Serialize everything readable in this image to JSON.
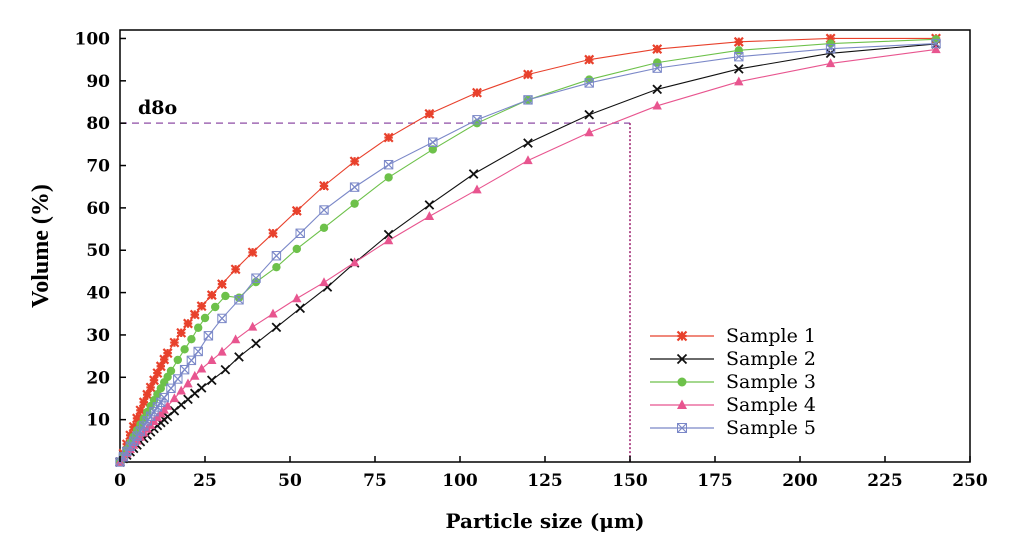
{
  "chart_data": {
    "type": "line",
    "title": "",
    "xlabel": "Particle size (μm)",
    "ylabel": "Volume (%)",
    "xlim": [
      0,
      250
    ],
    "ylim": [
      0,
      102
    ],
    "xticks": [
      0,
      25,
      50,
      75,
      100,
      125,
      150,
      175,
      200,
      225,
      250
    ],
    "yticks": [
      10,
      20,
      30,
      40,
      50,
      60,
      70,
      80,
      90,
      100
    ],
    "grid": false,
    "legend_position": "bottom-right",
    "annotation": {
      "text": "d8o",
      "reference_y": 80,
      "reference_x": 150,
      "color": "#a06ab4"
    },
    "series": [
      {
        "name": "Sample 1",
        "color": "#e8412c",
        "marker": "star",
        "points": [
          [
            0,
            0
          ],
          [
            1,
            2
          ],
          [
            2,
            4.2
          ],
          [
            3,
            6.3
          ],
          [
            4,
            8.3
          ],
          [
            5,
            10.3
          ],
          [
            6,
            12.2
          ],
          [
            7,
            14.1
          ],
          [
            8,
            15.9
          ],
          [
            9,
            17.6
          ],
          [
            10,
            19.3
          ],
          [
            11,
            21
          ],
          [
            12,
            22.6
          ],
          [
            13,
            24.2
          ],
          [
            14,
            25.7
          ],
          [
            16,
            28.2
          ],
          [
            18,
            30.5
          ],
          [
            20,
            32.7
          ],
          [
            22,
            34.8
          ],
          [
            24,
            36.8
          ],
          [
            27,
            39.4
          ],
          [
            30,
            42
          ],
          [
            34,
            45.5
          ],
          [
            39,
            49.5
          ],
          [
            45,
            54
          ],
          [
            52,
            59.3
          ],
          [
            60,
            65.2
          ],
          [
            69,
            71
          ],
          [
            79,
            76.6
          ],
          [
            91,
            82.2
          ],
          [
            105,
            87.2
          ],
          [
            120,
            91.5
          ],
          [
            138,
            95
          ],
          [
            158,
            97.5
          ],
          [
            182,
            99.2
          ],
          [
            209,
            100
          ],
          [
            240,
            100
          ]
        ]
      },
      {
        "name": "Sample 2",
        "color": "#111111",
        "marker": "x",
        "points": [
          [
            0,
            0
          ],
          [
            1,
            0.8
          ],
          [
            2,
            1.6
          ],
          [
            3,
            2.4
          ],
          [
            4,
            3.2
          ],
          [
            5,
            4
          ],
          [
            6,
            4.8
          ],
          [
            7,
            5.6
          ],
          [
            8,
            6.3
          ],
          [
            9,
            7.1
          ],
          [
            10,
            7.9
          ],
          [
            11,
            8.6
          ],
          [
            12,
            9.3
          ],
          [
            13,
            10
          ],
          [
            14,
            10.7
          ],
          [
            16,
            12.1
          ],
          [
            18,
            13.5
          ],
          [
            20,
            14.8
          ],
          [
            22,
            16.2
          ],
          [
            24,
            17.5
          ],
          [
            27,
            19.3
          ],
          [
            31,
            21.8
          ],
          [
            35,
            24.8
          ],
          [
            40,
            28
          ],
          [
            46,
            31.8
          ],
          [
            53,
            36.3
          ],
          [
            61,
            41.3
          ],
          [
            69,
            47
          ],
          [
            79,
            53.7
          ],
          [
            91,
            60.7
          ],
          [
            104,
            68
          ],
          [
            120,
            75.3
          ],
          [
            138,
            82
          ],
          [
            158,
            88
          ],
          [
            182,
            92.8
          ],
          [
            209,
            96.5
          ],
          [
            240,
            98.7
          ]
        ]
      },
      {
        "name": "Sample 3",
        "color": "#6dc14a",
        "marker": "circle",
        "points": [
          [
            0,
            0
          ],
          [
            1,
            1.5
          ],
          [
            2,
            3
          ],
          [
            3,
            4.5
          ],
          [
            4,
            6
          ],
          [
            5,
            7.5
          ],
          [
            6,
            8.9
          ],
          [
            7,
            10.3
          ],
          [
            8,
            11.8
          ],
          [
            9,
            13.2
          ],
          [
            10,
            14.6
          ],
          [
            11,
            16
          ],
          [
            12,
            17.4
          ],
          [
            13,
            18.8
          ],
          [
            14,
            20.1
          ],
          [
            15,
            21.5
          ],
          [
            17,
            24.1
          ],
          [
            19,
            26.6
          ],
          [
            21,
            29
          ],
          [
            23,
            31.7
          ],
          [
            25,
            34
          ],
          [
            28,
            36.6
          ],
          [
            31,
            39.2
          ],
          [
            35,
            38.8
          ],
          [
            40,
            42.5
          ],
          [
            46,
            46
          ],
          [
            52,
            50.3
          ],
          [
            60,
            55.3
          ],
          [
            69,
            61
          ],
          [
            79,
            67.2
          ],
          [
            92,
            73.8
          ],
          [
            105,
            80
          ],
          [
            120,
            85.5
          ],
          [
            138,
            90.3
          ],
          [
            158,
            94.3
          ],
          [
            182,
            97.2
          ],
          [
            209,
            98.8
          ],
          [
            240,
            99.8
          ]
        ]
      },
      {
        "name": "Sample 4",
        "color": "#e8558f",
        "marker": "triangle",
        "points": [
          [
            0,
            0
          ],
          [
            1,
            1
          ],
          [
            2,
            2
          ],
          [
            3,
            3
          ],
          [
            4,
            4
          ],
          [
            5,
            5
          ],
          [
            6,
            5.9
          ],
          [
            7,
            6.9
          ],
          [
            8,
            7.8
          ],
          [
            9,
            8.7
          ],
          [
            10,
            9.6
          ],
          [
            11,
            10.5
          ],
          [
            12,
            11.4
          ],
          [
            13,
            12.3
          ],
          [
            14,
            13.2
          ],
          [
            16,
            15
          ],
          [
            18,
            16.8
          ],
          [
            20,
            18.5
          ],
          [
            22,
            20.3
          ],
          [
            24,
            22
          ],
          [
            27,
            24
          ],
          [
            30,
            26
          ],
          [
            34,
            28.9
          ],
          [
            39,
            31.9
          ],
          [
            45,
            35
          ],
          [
            52,
            38.6
          ],
          [
            60,
            42.4
          ],
          [
            69,
            47.1
          ],
          [
            79,
            52.3
          ],
          [
            91,
            58
          ],
          [
            105,
            64.3
          ],
          [
            120,
            71.2
          ],
          [
            138,
            77.8
          ],
          [
            158,
            84.1
          ],
          [
            182,
            89.8
          ],
          [
            209,
            94.1
          ],
          [
            240,
            97.4
          ]
        ]
      },
      {
        "name": "Sample 5",
        "color": "#7b88c8",
        "marker": "cross-square",
        "points": [
          [
            0,
            0
          ],
          [
            1,
            1.2
          ],
          [
            2,
            2.5
          ],
          [
            3,
            3.7
          ],
          [
            4,
            4.9
          ],
          [
            5,
            6.1
          ],
          [
            6,
            7.3
          ],
          [
            7,
            8.5
          ],
          [
            8,
            9.7
          ],
          [
            9,
            10.8
          ],
          [
            10,
            11.9
          ],
          [
            11,
            13
          ],
          [
            12,
            14.1
          ],
          [
            13,
            15.2
          ],
          [
            15,
            17.4
          ],
          [
            17,
            19.6
          ],
          [
            19,
            21.8
          ],
          [
            21,
            24
          ],
          [
            23,
            26.1
          ],
          [
            26,
            29.8
          ],
          [
            30,
            33.9
          ],
          [
            35,
            38.3
          ],
          [
            40,
            43.4
          ],
          [
            46,
            48.7
          ],
          [
            53,
            54
          ],
          [
            60,
            59.5
          ],
          [
            69,
            64.9
          ],
          [
            79,
            70.2
          ],
          [
            92,
            75.5
          ],
          [
            105,
            80.8
          ],
          [
            120,
            85.5
          ],
          [
            138,
            89.5
          ],
          [
            158,
            93
          ],
          [
            182,
            95.7
          ],
          [
            209,
            97.6
          ],
          [
            240,
            98.8
          ]
        ]
      }
    ]
  }
}
